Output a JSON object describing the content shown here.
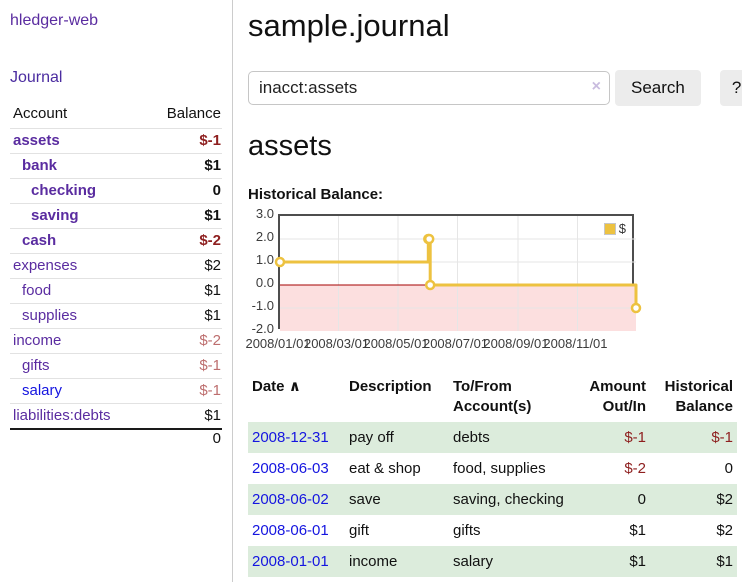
{
  "app": {
    "name": "hledger-web"
  },
  "sidebar": {
    "nav": {
      "journal_label": "Journal"
    },
    "accounts": {
      "headers": {
        "account": "Account",
        "balance": "Balance"
      },
      "rows": [
        {
          "label": "assets",
          "balance": "$-1",
          "level": 1,
          "bold": true,
          "label_style": "purple",
          "balance_style": "neg"
        },
        {
          "label": "bank",
          "balance": "$1",
          "level": 2,
          "bold": true,
          "label_style": "purple",
          "balance_style": "normal"
        },
        {
          "label": "checking",
          "balance": "0",
          "level": 3,
          "bold": true,
          "label_style": "purple",
          "balance_style": "normal"
        },
        {
          "label": "saving",
          "balance": "$1",
          "level": 3,
          "bold": true,
          "label_style": "purple",
          "balance_style": "normal"
        },
        {
          "label": "cash",
          "balance": "$-2",
          "level": 2,
          "bold": true,
          "label_style": "purple",
          "balance_style": "neg"
        },
        {
          "label": "expenses",
          "balance": "$2",
          "level": 1,
          "bold": false,
          "label_style": "purple",
          "balance_style": "normal"
        },
        {
          "label": "food",
          "balance": "$1",
          "level": 2,
          "bold": false,
          "label_style": "purple",
          "balance_style": "normal"
        },
        {
          "label": "supplies",
          "balance": "$1",
          "level": 2,
          "bold": false,
          "label_style": "purple",
          "balance_style": "normal"
        },
        {
          "label": "income",
          "balance": "$-2",
          "level": 1,
          "bold": false,
          "label_style": "purple",
          "balance_style": "neg-soft"
        },
        {
          "label": "gifts",
          "balance": "$-1",
          "level": 2,
          "bold": false,
          "label_style": "purple",
          "balance_style": "neg-soft"
        },
        {
          "label": "salary",
          "balance": "$-1",
          "level": 2,
          "bold": false,
          "label_style": "blue",
          "balance_style": "neg-soft"
        },
        {
          "label": "liabilities:debts",
          "balance": "$1",
          "level": 1,
          "bold": false,
          "label_style": "purple",
          "balance_style": "normal"
        }
      ],
      "total": "0"
    }
  },
  "main": {
    "title": "sample.journal",
    "search": {
      "value": "inacct:assets",
      "clear_icon": "×",
      "button_label": "Search",
      "help_label": "?"
    },
    "account_heading": "assets",
    "chart_title": "Historical Balance:"
  },
  "chart_data": {
    "type": "line",
    "style": "step-with-markers",
    "title": "Historical Balance:",
    "series": [
      {
        "name": "$",
        "color": "#edc240",
        "points": [
          [
            "2008-01-01",
            1
          ],
          [
            "2008-06-01",
            2
          ],
          [
            "2008-06-02",
            2
          ],
          [
            "2008-06-03",
            0
          ],
          [
            "2008-12-31",
            -1
          ]
        ]
      }
    ],
    "x_ticks": [
      "2008/01/01",
      "2008/03/01",
      "2008/05/01",
      "2008/07/01",
      "2008/09/01",
      "2008/11/01"
    ],
    "y_ticks": [
      3.0,
      2.0,
      1.0,
      0.0,
      -1.0,
      -2.0
    ],
    "ylim": [
      -2,
      3
    ],
    "xlim": [
      "2008-01-01",
      "2008-12-31"
    ],
    "grid": true,
    "legend_position": "top-right",
    "zero_line_color": "#a40000",
    "negative_region_color": "#fcdfdf"
  },
  "register": {
    "headers": {
      "date": "Date",
      "sort_icon": "∧",
      "description": "Description",
      "accounts": "To/From Account(s)",
      "amount": "Amount Out/In",
      "balance": "Historical Balance"
    },
    "rows": [
      {
        "date": "2008-12-31",
        "description": "pay off",
        "accounts": "debts",
        "amount": "$-1",
        "amount_style": "neg",
        "balance": "$-1",
        "balance_style": "neg"
      },
      {
        "date": "2008-06-03",
        "description": "eat & shop",
        "accounts": "food, supplies",
        "amount": "$-2",
        "amount_style": "neg",
        "balance": "0",
        "balance_style": "normal"
      },
      {
        "date": "2008-06-02",
        "description": "save",
        "accounts": "saving, checking",
        "amount": "0",
        "amount_style": "normal",
        "balance": "$2",
        "balance_style": "normal"
      },
      {
        "date": "2008-06-01",
        "description": "gift",
        "accounts": "gifts",
        "amount": "$1",
        "amount_style": "normal",
        "balance": "$2",
        "balance_style": "normal"
      },
      {
        "date": "2008-01-01",
        "description": "income",
        "accounts": "salary",
        "amount": "$1",
        "amount_style": "normal",
        "balance": "$1",
        "balance_style": "normal"
      }
    ]
  },
  "colors": {
    "link_purple": "#5a2ca0",
    "link_blue": "#1515e0",
    "negative_strong": "#8e1f1f",
    "negative_soft": "#bd6e6e",
    "row_green": "#dcecdc",
    "series_gold": "#edc240"
  }
}
